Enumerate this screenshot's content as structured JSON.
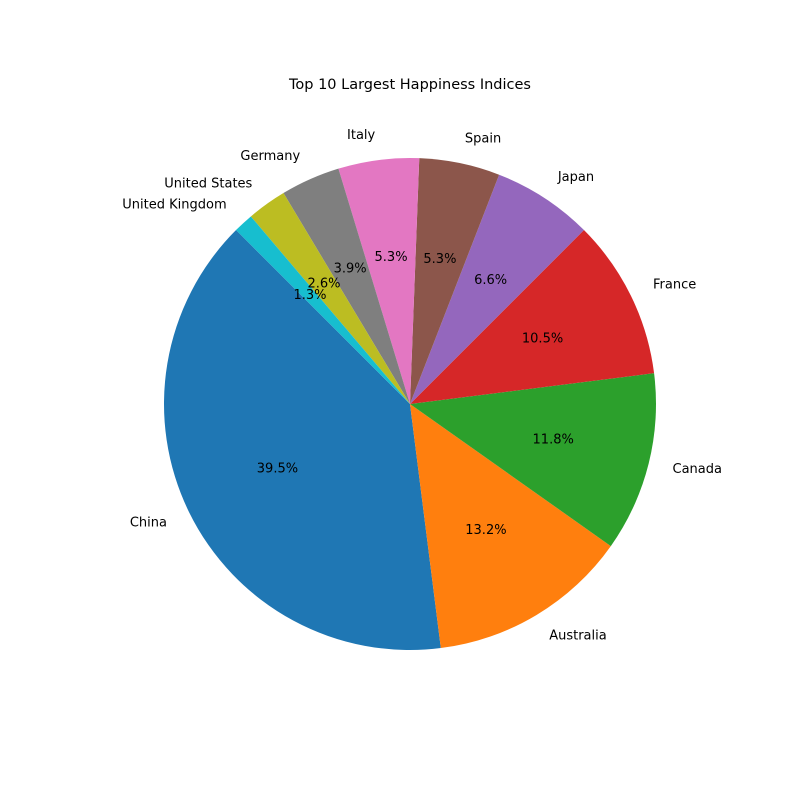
{
  "chart_data": {
    "type": "pie",
    "title": "Top 10 Largest Happiness Indices",
    "start_angle_deg": 135,
    "direction": "counterclockwise",
    "slices": [
      {
        "label": "China",
        "value": 39.5,
        "pct_label": "39.5%",
        "color": "#1f77b4"
      },
      {
        "label": "Australia",
        "value": 13.2,
        "pct_label": "13.2%",
        "color": "#ff7f0e"
      },
      {
        "label": "Canada",
        "value": 11.8,
        "pct_label": "11.8%",
        "color": "#2ca02c"
      },
      {
        "label": "France",
        "value": 10.5,
        "pct_label": "10.5%",
        "color": "#d62728"
      },
      {
        "label": "Japan",
        "value": 6.6,
        "pct_label": "6.6%",
        "color": "#9467bd"
      },
      {
        "label": "Spain",
        "value": 5.3,
        "pct_label": "5.3%",
        "color": "#8c564b"
      },
      {
        "label": "Italy",
        "value": 5.3,
        "pct_label": "5.3%",
        "color": "#e377c2"
      },
      {
        "label": "Germany",
        "value": 3.9,
        "pct_label": "3.9%",
        "color": "#7f7f7f"
      },
      {
        "label": "United States",
        "value": 2.6,
        "pct_label": "2.6%",
        "color": "#bcbd22"
      },
      {
        "label": "United Kingdom",
        "value": 1.3,
        "pct_label": "1.3%",
        "color": "#17becf"
      }
    ]
  }
}
